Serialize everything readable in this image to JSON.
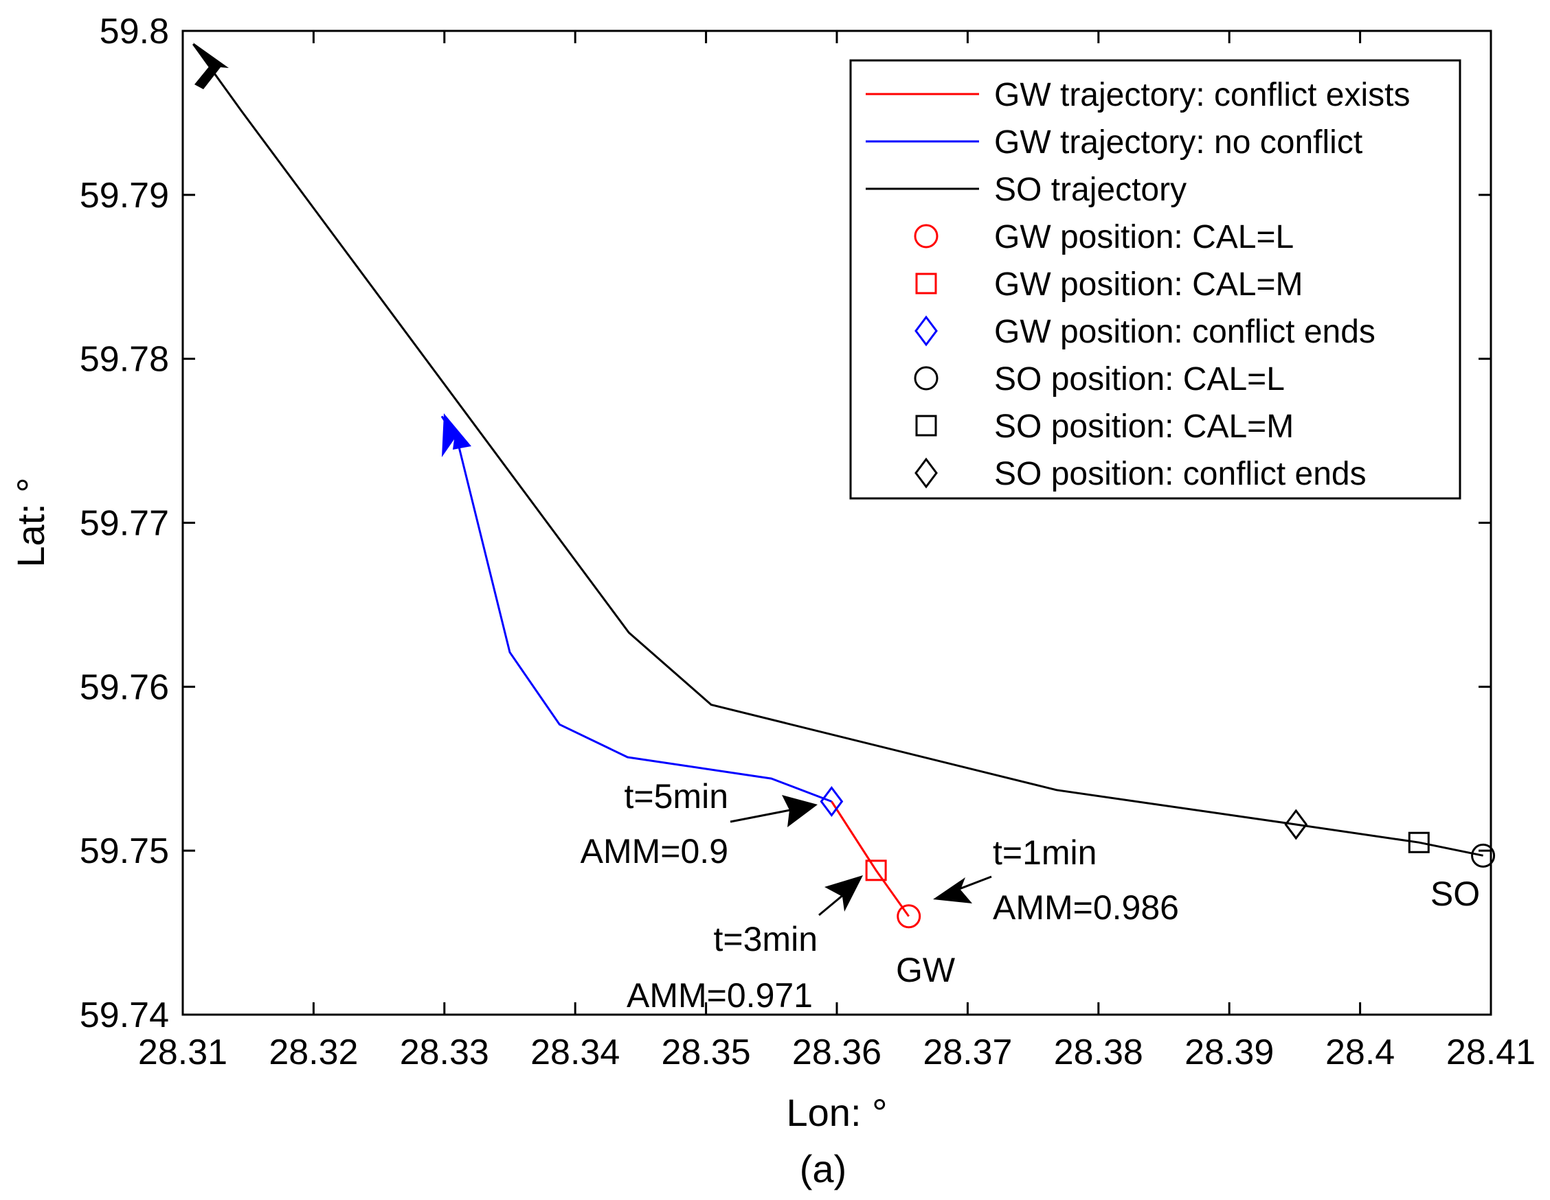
{
  "chart_data": {
    "type": "line",
    "xlabel": "Lon: °",
    "ylabel": "Lat: °",
    "caption": "(a)",
    "xlim": [
      28.31,
      28.41
    ],
    "ylim": [
      59.74,
      59.8
    ],
    "xticks": [
      28.31,
      28.32,
      28.33,
      28.34,
      28.35,
      28.36,
      28.37,
      28.38,
      28.39,
      28.4,
      28.41
    ],
    "xtick_labels": [
      "28.31",
      "28.32",
      "28.33",
      "28.34",
      "28.35",
      "28.36",
      "28.37",
      "28.38",
      "28.39",
      "28.4",
      "28.41"
    ],
    "yticks": [
      59.74,
      59.75,
      59.76,
      59.77,
      59.78,
      59.79,
      59.8
    ],
    "ytick_labels": [
      "59.74",
      "59.75",
      "59.76",
      "59.77",
      "59.78",
      "59.79",
      "59.8"
    ],
    "grid": false,
    "legend_position": "top-right",
    "series": [
      {
        "name": "GW trajectory: conflict exists",
        "color": "#ff0000",
        "x": [
          28.3655,
          28.363,
          28.3596
        ],
        "y": [
          59.746,
          59.7488,
          59.753
        ]
      },
      {
        "name": "GW trajectory: no conflict",
        "color": "#0000ff",
        "x": [
          28.3596,
          28.355,
          28.344,
          28.3388,
          28.335,
          28.331,
          28.3298
        ],
        "y": [
          59.753,
          59.7544,
          59.7557,
          59.7577,
          59.7621,
          59.775,
          59.7765
        ]
      },
      {
        "name": "SO trajectory",
        "color": "#000000",
        "x": [
          28.4094,
          28.4045,
          28.3951,
          28.3768,
          28.3504,
          28.3441,
          28.3145,
          28.3108
        ],
        "y": [
          59.7497,
          59.7505,
          59.7516,
          59.7537,
          59.7589,
          59.7633,
          59.7951,
          59.7992
        ]
      }
    ],
    "markers": [
      {
        "name": "GW position: CAL=L",
        "shape": "circle",
        "color": "#ff0000",
        "x": 28.3655,
        "y": 59.746
      },
      {
        "name": "GW position: CAL=M",
        "shape": "square",
        "color": "#ff0000",
        "x": 28.363,
        "y": 59.7488
      },
      {
        "name": "GW position: conflict ends",
        "shape": "diamond",
        "color": "#0000ff",
        "x": 28.3596,
        "y": 59.753
      },
      {
        "name": "SO position: CAL=L",
        "shape": "circle",
        "color": "#000000",
        "x": 28.4094,
        "y": 59.7497
      },
      {
        "name": "SO position: CAL=M",
        "shape": "square",
        "color": "#000000",
        "x": 28.4045,
        "y": 59.7505
      },
      {
        "name": "SO position: conflict ends",
        "shape": "diamond",
        "color": "#000000",
        "x": 28.3951,
        "y": 59.7516
      }
    ],
    "legend": [
      {
        "label": "GW trajectory: conflict exists",
        "kind": "line",
        "color": "#ff0000"
      },
      {
        "label": "GW trajectory: no conflict",
        "kind": "line",
        "color": "#0000ff"
      },
      {
        "label": "SO trajectory",
        "kind": "line",
        "color": "#000000"
      },
      {
        "label": "GW position: CAL=L",
        "kind": "circle",
        "color": "#ff0000"
      },
      {
        "label": "GW position: CAL=M",
        "kind": "square",
        "color": "#ff0000"
      },
      {
        "label": "GW position: conflict ends",
        "kind": "diamond",
        "color": "#0000ff"
      },
      {
        "label": "SO position: CAL=L",
        "kind": "circle",
        "color": "#000000"
      },
      {
        "label": "SO position: CAL=M",
        "kind": "square",
        "color": "#000000"
      },
      {
        "label": "SO position: conflict ends",
        "kind": "diamond",
        "color": "#000000"
      }
    ],
    "annotations": {
      "t5_time": "t=5min",
      "t5_amm": "AMM=0.9",
      "t3_time": "t=3min",
      "t3_amm": "AMM=0.971",
      "t1_time": "t=1min",
      "t1_amm": "AMM=0.986",
      "gw_label": "GW",
      "so_label": "SO"
    }
  }
}
